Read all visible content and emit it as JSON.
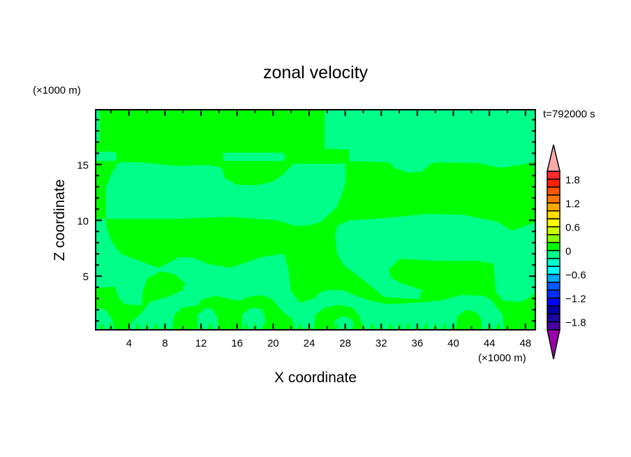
{
  "chart_data": {
    "type": "heatmap",
    "subtype": "filled-contour",
    "title": "zonal velocity",
    "xlabel": "X coordinate",
    "ylabel": "Z coordinate",
    "x_units": "(×1000 m)",
    "y_units": "(×1000 m)",
    "time_label": "t=792000 s",
    "xlim": [
      0.3,
      49.1
    ],
    "ylim": [
      0.2,
      19.9
    ],
    "x_major_ticks": [
      4,
      8,
      12,
      16,
      20,
      24,
      28,
      32,
      36,
      40,
      44,
      48
    ],
    "x_minor_step": 2,
    "y_major_ticks": [
      5,
      10,
      15
    ],
    "y_minor_step": 1,
    "grid": false,
    "colorbar": {
      "levels": [
        -2.0,
        -1.8,
        -1.6,
        -1.4,
        -1.2,
        -1.0,
        -0.8,
        -0.6,
        -0.4,
        -0.2,
        0,
        0.2,
        0.4,
        0.6,
        0.8,
        1.0,
        1.2,
        1.4,
        1.6,
        1.8,
        2.0
      ],
      "colors": [
        "#4a00a8",
        "#1a08a0",
        "#0000a6",
        "#0000ff",
        "#0030ff",
        "#0058ff",
        "#00a8ff",
        "#00ffff",
        "#00ffcc",
        "#00ff88",
        "#00ff00",
        "#88ff00",
        "#ccff00",
        "#ffff00",
        "#ffdd00",
        "#ffaa00",
        "#ff7700",
        "#ff5500",
        "#ff2200",
        "#ff2a2a"
      ],
      "under_color": "#9900aa",
      "over_color": "#ffaaaa",
      "tick_labels": [
        "1.8",
        "1.2",
        "0.6",
        "0",
        "−0.6",
        "−1.2",
        "−1.8"
      ],
      "tick_values": [
        1.8,
        1.2,
        0.6,
        0,
        -0.6,
        -1.2,
        -1.8
      ],
      "placement": "right"
    },
    "field_background_level": "-0.2 to 0",
    "regions": [
      {
        "level": "0 to 0.2",
        "points": [
          [
            0.74,
            19.9
          ],
          [
            25.71,
            19.9
          ],
          [
            25.71,
            16.44
          ],
          [
            28.43,
            16.31
          ],
          [
            28.43,
            15.06
          ],
          [
            22.22,
            15.06
          ],
          [
            21.05,
            14.06
          ],
          [
            19.89,
            13.44
          ],
          [
            17.95,
            13.13
          ],
          [
            16.02,
            13.19
          ],
          [
            14.62,
            13.75
          ],
          [
            14.31,
            14.69
          ],
          [
            12.91,
            14.94
          ],
          [
            9.04,
            14.88
          ],
          [
            5.16,
            15.19
          ],
          [
            2.84,
            15.19
          ],
          [
            2.06,
            14.19
          ],
          [
            1.44,
            12.94
          ],
          [
            1.44,
            10.13
          ],
          [
            0.3,
            10.13
          ],
          [
            0.3,
            16.69
          ],
          [
            0.74,
            17.19
          ]
        ]
      },
      {
        "level": "-0.2 to 0",
        "points": [
          [
            0.3,
            16.13
          ],
          [
            2.45,
            16.13
          ],
          [
            2.68,
            15.69
          ],
          [
            2.45,
            15.31
          ],
          [
            0.3,
            15.31
          ]
        ]
      },
      {
        "level": "-0.2 to 0",
        "points": [
          [
            14.47,
            16.06
          ],
          [
            21.05,
            16.06
          ],
          [
            21.44,
            15.63
          ],
          [
            21.05,
            15.31
          ],
          [
            14.47,
            15.31
          ]
        ]
      },
      {
        "level": "0 to 0.2",
        "points": [
          [
            28.04,
            15.31
          ],
          [
            32.84,
            15.19
          ],
          [
            33.46,
            14.69
          ],
          [
            35.0,
            14.25
          ],
          [
            36.55,
            14.38
          ],
          [
            37.34,
            15.0
          ],
          [
            38.11,
            15.19
          ],
          [
            42.6,
            15.13
          ],
          [
            45.24,
            14.69
          ],
          [
            47.8,
            15.0
          ],
          [
            49.1,
            15.31
          ],
          [
            49.1,
            0.2
          ],
          [
            45.62,
            0.2
          ],
          [
            45.47,
            1.56
          ],
          [
            44.85,
            2.19
          ],
          [
            44.3,
            2.81
          ],
          [
            43.37,
            3.25
          ],
          [
            40.82,
            3.31
          ],
          [
            38.5,
            2.81
          ],
          [
            36.71,
            2.69
          ],
          [
            32.68,
            2.5
          ],
          [
            30.74,
            2.81
          ],
          [
            29.19,
            3.25
          ],
          [
            27.64,
            3.75
          ],
          [
            26.1,
            3.75
          ],
          [
            25.32,
            3.63
          ],
          [
            24.54,
            3.0
          ],
          [
            23.0,
            2.63
          ],
          [
            21.99,
            3.63
          ],
          [
            21.83,
            4.69
          ],
          [
            21.67,
            5.75
          ],
          [
            21.21,
            7.0
          ],
          [
            18.88,
            6.75
          ],
          [
            15.24,
            5.75
          ],
          [
            12.91,
            6.06
          ],
          [
            10.98,
            6.69
          ],
          [
            9.58,
            6.69
          ],
          [
            7.26,
            5.75
          ],
          [
            5.16,
            6.38
          ],
          [
            3.07,
            7.0
          ],
          [
            2.06,
            8.13
          ],
          [
            1.52,
            9.38
          ],
          [
            1.44,
            10.13
          ],
          [
            9.04,
            10.13
          ],
          [
            15.24,
            10.31
          ],
          [
            20.43,
            10.0
          ],
          [
            22.45,
            9.5
          ],
          [
            24.16,
            9.56
          ],
          [
            25.32,
            9.88
          ],
          [
            27.02,
            11.13
          ],
          [
            27.64,
            12.38
          ],
          [
            28.04,
            13.44
          ]
        ]
      },
      {
        "level": "-0.2 to 0",
        "points": [
          [
            49.1,
            9.81
          ],
          [
            46.48,
            9.06
          ],
          [
            44.93,
            9.88
          ],
          [
            41.05,
            10.5
          ],
          [
            36.95,
            10.56
          ],
          [
            32.29,
            10.19
          ],
          [
            28.43,
            10.0
          ],
          [
            27.1,
            9.5
          ],
          [
            26.87,
            8.63
          ],
          [
            27.1,
            7.0
          ],
          [
            27.88,
            5.94
          ],
          [
            29.97,
            4.69
          ],
          [
            32.29,
            3.13
          ],
          [
            36.17,
            2.94
          ],
          [
            36.55,
            3.75
          ],
          [
            34.23,
            4.38
          ],
          [
            33.07,
            4.88
          ],
          [
            32.84,
            5.63
          ],
          [
            34.08,
            6.56
          ],
          [
            37.72,
            6.38
          ],
          [
            42.6,
            6.38
          ],
          [
            44.46,
            6.13
          ],
          [
            44.7,
            3.63
          ],
          [
            45.47,
            2.81
          ],
          [
            47.41,
            2.69
          ],
          [
            48.57,
            3.13
          ],
          [
            49.1,
            3.63
          ]
        ]
      },
      {
        "level": "0 to 0.2",
        "points": [
          [
            0.3,
            3.94
          ],
          [
            2.45,
            4.06
          ],
          [
            2.84,
            3.13
          ],
          [
            3.46,
            2.5
          ],
          [
            5.4,
            2.38
          ],
          [
            5.55,
            3.75
          ],
          [
            6.09,
            4.81
          ],
          [
            7.49,
            5.44
          ],
          [
            9.04,
            5.19
          ],
          [
            10.2,
            4.38
          ],
          [
            9.97,
            3.75
          ],
          [
            8.26,
            3.13
          ],
          [
            6.33,
            2.69
          ],
          [
            5.55,
            1.88
          ],
          [
            4.39,
            0.94
          ],
          [
            3.61,
            0.2
          ],
          [
            2.45,
            0.2
          ],
          [
            2.06,
            1.25
          ],
          [
            1.29,
            2.06
          ],
          [
            0.3,
            2.19
          ]
        ]
      },
      {
        "level": "0 to 0.2",
        "points": [
          [
            8.8,
            0.2
          ],
          [
            9.04,
            1.56
          ],
          [
            9.97,
            2.19
          ],
          [
            11.6,
            2.38
          ],
          [
            12.14,
            2.94
          ],
          [
            13.69,
            3.25
          ],
          [
            15.24,
            2.94
          ],
          [
            16.4,
            2.81
          ],
          [
            17.18,
            3.13
          ],
          [
            18.73,
            3.31
          ],
          [
            19.89,
            2.94
          ],
          [
            20.67,
            2.19
          ],
          [
            21.44,
            1.56
          ],
          [
            22.06,
            1.25
          ],
          [
            22.45,
            0.2
          ]
        ]
      },
      {
        "level": "-0.2 to 0",
        "points": [
          [
            11.6,
            0.2
          ],
          [
            11.6,
            1.56
          ],
          [
            12.53,
            2.19
          ],
          [
            13.3,
            2.06
          ],
          [
            13.84,
            1.25
          ],
          [
            13.84,
            0.2
          ]
        ]
      },
      {
        "level": "-0.2 to 0",
        "points": [
          [
            16.56,
            0.2
          ],
          [
            16.56,
            1.56
          ],
          [
            17.57,
            2.19
          ],
          [
            18.73,
            2.06
          ],
          [
            19.12,
            1.25
          ],
          [
            19.12,
            0.2
          ]
        ]
      },
      {
        "level": "0 to 0.2",
        "points": [
          [
            24.54,
            0.2
          ],
          [
            24.7,
            1.56
          ],
          [
            25.71,
            2.19
          ],
          [
            27.25,
            2.44
          ],
          [
            28.81,
            2.19
          ],
          [
            29.58,
            1.44
          ],
          [
            29.97,
            0.2
          ]
        ]
      },
      {
        "level": "-0.2 to 0",
        "points": [
          [
            26.72,
            0.2
          ],
          [
            26.87,
            1.06
          ],
          [
            27.8,
            1.44
          ],
          [
            28.81,
            1.06
          ],
          [
            29.04,
            0.2
          ]
        ]
      },
      {
        "level": "0 to 0.2",
        "points": [
          [
            40.28,
            0.2
          ],
          [
            40.43,
            1.44
          ],
          [
            41.43,
            2.0
          ],
          [
            42.6,
            1.75
          ],
          [
            43.14,
            1.06
          ],
          [
            43.14,
            0.2
          ]
        ]
      }
    ],
    "near_surface_spikes": {
      "level": "0 to 0.2",
      "x": [
        1,
        2,
        3,
        4,
        5,
        6,
        7,
        8,
        9,
        10,
        11,
        12,
        13,
        14,
        15,
        16,
        17,
        18,
        19,
        20,
        21,
        22,
        23,
        24,
        25,
        26,
        27,
        28,
        29,
        30,
        31,
        32,
        33,
        34,
        35,
        36,
        37,
        38,
        39,
        40,
        41,
        42,
        43,
        44,
        45,
        46,
        47,
        48
      ],
      "top_z": 0.9
    },
    "level_colors": {
      "0 to 0.2": "#00ff00",
      "-0.2 to 0": "#00ff88"
    }
  }
}
